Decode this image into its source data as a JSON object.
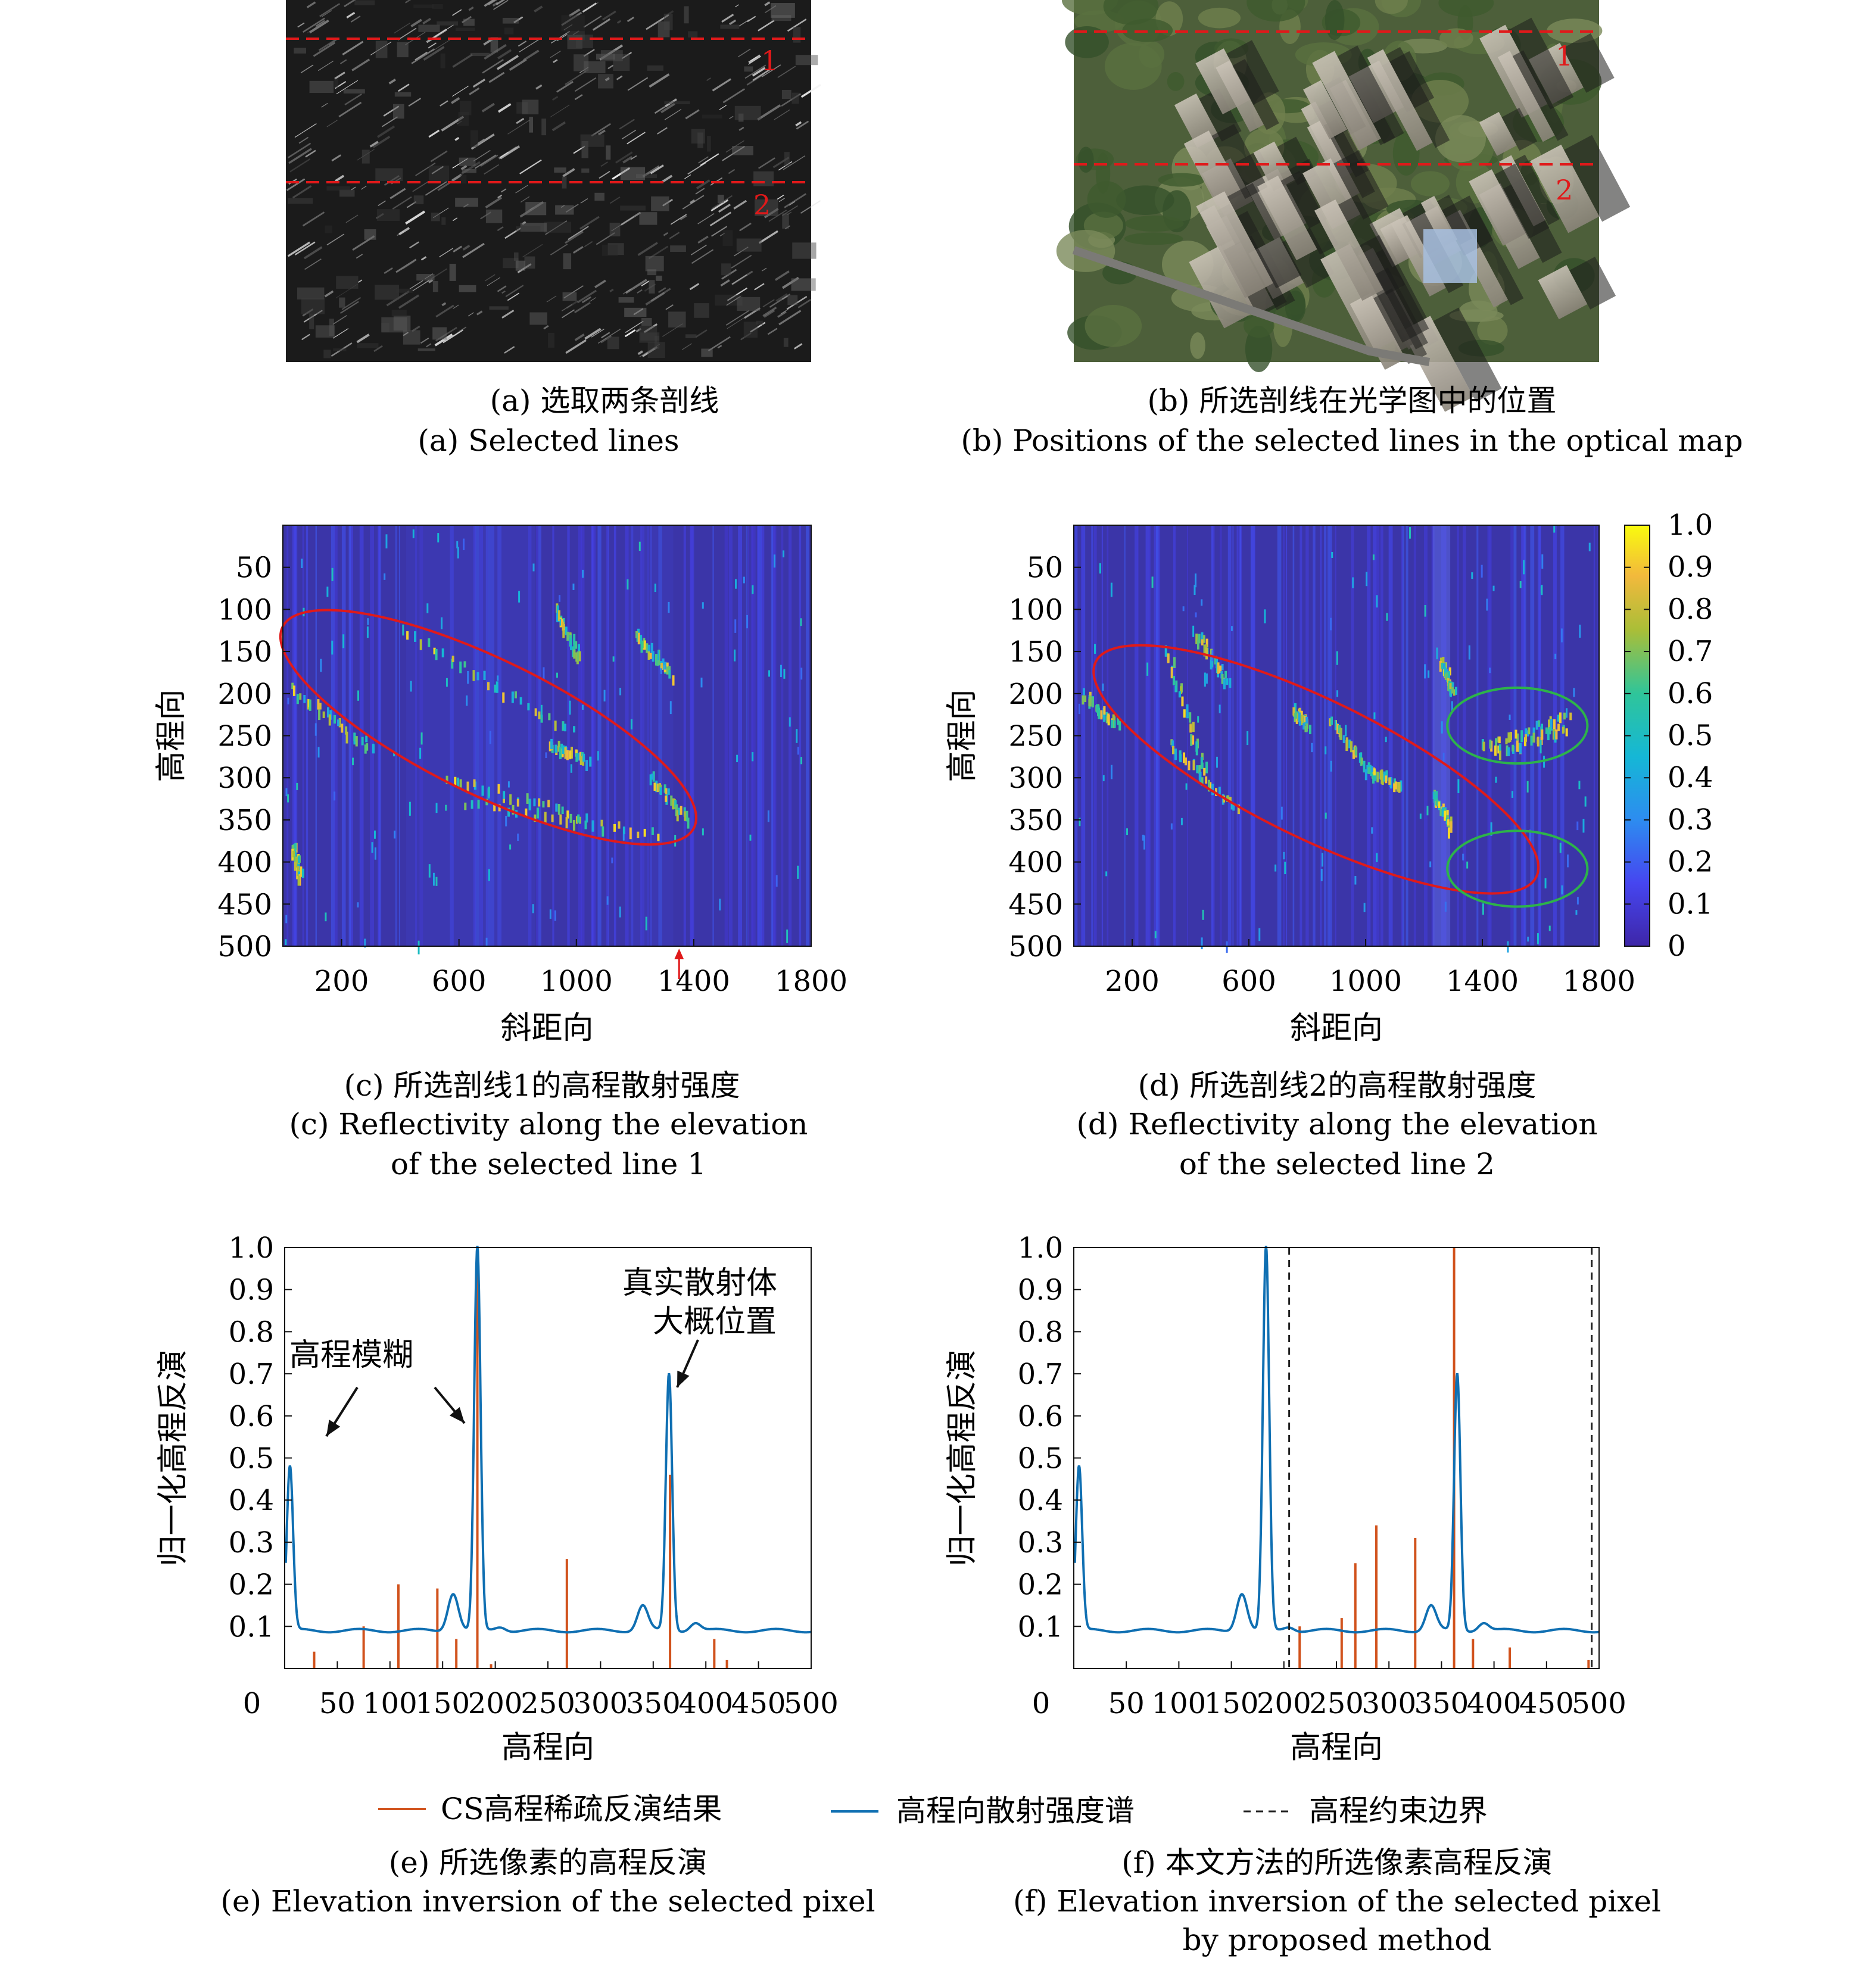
{
  "colors": {
    "axis": "#111111",
    "red_line": "#e0191a",
    "ellipse_red": "#e01a1a",
    "ellipse_green": "#2db34a",
    "spectrum": "#0f6fb2",
    "cs": "#d1521c",
    "heat_bg": "#3b35a8"
  },
  "icons": [
    "arrow-icon",
    "colorbar"
  ],
  "panels": {
    "a": {
      "caption_cn": "(a) 选取两条剖线",
      "caption_en": "(a) Selected lines",
      "line_labels": [
        "1",
        "2"
      ]
    },
    "b": {
      "caption_cn": "(b) 所选剖线在光学图中的位置",
      "caption_en": "(b) Positions of the selected lines in the optical map",
      "line_labels": [
        "1",
        "2"
      ]
    },
    "c": {
      "caption_cn": "(c) 所选剖线1的高程散射强度",
      "caption_en_1": "(c) Reflectivity along the elevation",
      "caption_en_2": "of the selected line 1"
    },
    "d": {
      "caption_cn": "(d) 所选剖线2的高程散射强度",
      "caption_en_1": "(d) Reflectivity along the elevation",
      "caption_en_2": "of the selected line 2"
    },
    "e": {
      "caption_cn": "(e) 所选像素的高程反演",
      "caption_en": "(e) Elevation inversion of the selected pixel",
      "annotation_1": "高程模糊",
      "annotation_2_line1": "真实散射体",
      "annotation_2_line2": "大概位置"
    },
    "f": {
      "caption_cn": "(f) 本文方法的所选像素高程反演",
      "caption_en_1": "(f) Elevation inversion of the selected pixel",
      "caption_en_2": "by proposed method"
    }
  },
  "legend": {
    "cs": "CS高程稀疏反演结果",
    "spectrum": "高程向散射强度谱",
    "boundary": "高程约束边界"
  },
  "chart_data": [
    {
      "type": "heatmap",
      "panel": "c",
      "xlabel": "斜距向",
      "ylabel": "高程向",
      "xticks": [
        200,
        600,
        1000,
        1400,
        1800
      ],
      "yticks": [
        50,
        100,
        150,
        200,
        250,
        300,
        350,
        400,
        450,
        500
      ],
      "xlim": [
        0,
        1800
      ],
      "ylim": [
        0,
        500
      ],
      "marked_range_bin": 1350,
      "ellipses": [
        {
          "color": "red",
          "center": [
            700,
            240
          ],
          "semi_axes": [
            780,
            80
          ],
          "angle_deg": 26
        }
      ]
    },
    {
      "type": "heatmap",
      "panel": "d",
      "xlabel": "斜距向",
      "ylabel": "高程向",
      "xticks": [
        200,
        600,
        1000,
        1400,
        1800
      ],
      "yticks": [
        50,
        100,
        150,
        200,
        250,
        300,
        350,
        400,
        450,
        500
      ],
      "xlim": [
        0,
        1800
      ],
      "ylim": [
        0,
        500
      ],
      "colorbar": {
        "range": [
          0,
          1
        ],
        "ticks": [
          "1.0",
          "0.9",
          "0.8",
          "0.7",
          "0.6",
          "0.5",
          "0.4",
          "0.3",
          "0.2",
          "0.1",
          "0"
        ]
      },
      "ellipses": [
        {
          "color": "red",
          "center": [
            830,
            290
          ],
          "semi_axes": [
            840,
            82
          ],
          "angle_deg": 26
        },
        {
          "color": "green",
          "center": [
            1520,
            238
          ],
          "semi_axes": [
            240,
            45
          ],
          "angle_deg": 0
        },
        {
          "color": "green",
          "center": [
            1520,
            408
          ],
          "semi_axes": [
            240,
            45
          ],
          "angle_deg": 0
        }
      ]
    },
    {
      "type": "line",
      "panel": "e",
      "xlabel": "高程向",
      "ylabel": "归一化高程反演",
      "xlim": [
        0,
        500
      ],
      "ylim": [
        0,
        1
      ],
      "xticks": [
        "0",
        "50",
        "100",
        "150",
        "200",
        "250",
        "300",
        "350",
        "400",
        "450",
        "500"
      ],
      "yticks": [
        "0.1",
        "0.2",
        "0.3",
        "0.4",
        "0.5",
        "0.6",
        "0.7",
        "0.8",
        "0.9",
        "1.0"
      ],
      "spectrum": {
        "baseline": 0.09,
        "peaks": [
          {
            "x": 5,
            "h": 0.48,
            "w": 3
          },
          {
            "x": 160,
            "h": 0.18,
            "w": 5
          },
          {
            "x": 183,
            "h": 1.0,
            "w": 3
          },
          {
            "x": 205,
            "h": 0.1,
            "w": 5
          },
          {
            "x": 340,
            "h": 0.15,
            "w": 5
          },
          {
            "x": 365,
            "h": 0.7,
            "w": 3
          },
          {
            "x": 390,
            "h": 0.11,
            "w": 5
          }
        ]
      },
      "cs_stems": [
        {
          "x": 28,
          "y": 0.04
        },
        {
          "x": 75,
          "y": 0.1
        },
        {
          "x": 108,
          "y": 0.2
        },
        {
          "x": 145,
          "y": 0.19
        },
        {
          "x": 163,
          "y": 0.07
        },
        {
          "x": 183,
          "y": 1.0
        },
        {
          "x": 196,
          "y": 0.01
        },
        {
          "x": 268,
          "y": 0.26
        },
        {
          "x": 366,
          "y": 0.46
        },
        {
          "x": 408,
          "y": 0.07
        },
        {
          "x": 420,
          "y": 0.02
        }
      ]
    },
    {
      "type": "line",
      "panel": "f",
      "xlabel": "高程向",
      "ylabel": "归一化高程反演",
      "xlim": [
        0,
        500
      ],
      "ylim": [
        0,
        1
      ],
      "xticks": [
        "0",
        "50",
        "100",
        "150",
        "200",
        "250",
        "300",
        "350",
        "400",
        "450",
        "500"
      ],
      "yticks": [
        "0.1",
        "0.2",
        "0.3",
        "0.4",
        "0.5",
        "0.6",
        "0.7",
        "0.8",
        "0.9",
        "1.0"
      ],
      "spectrum": {
        "baseline": 0.09,
        "peaks": [
          {
            "x": 5,
            "h": 0.48,
            "w": 3
          },
          {
            "x": 160,
            "h": 0.18,
            "w": 5
          },
          {
            "x": 183,
            "h": 1.0,
            "w": 3
          },
          {
            "x": 205,
            "h": 0.1,
            "w": 5
          },
          {
            "x": 340,
            "h": 0.15,
            "w": 5
          },
          {
            "x": 365,
            "h": 0.7,
            "w": 3
          },
          {
            "x": 390,
            "h": 0.11,
            "w": 5
          }
        ]
      },
      "cs_stems": [
        {
          "x": 215,
          "y": 0.1
        },
        {
          "x": 255,
          "y": 0.12
        },
        {
          "x": 268,
          "y": 0.25
        },
        {
          "x": 288,
          "y": 0.34
        },
        {
          "x": 325,
          "y": 0.31
        },
        {
          "x": 362,
          "y": 1.0
        },
        {
          "x": 380,
          "y": 0.07
        },
        {
          "x": 415,
          "y": 0.05
        },
        {
          "x": 490,
          "y": 0.02
        }
      ],
      "boundaries": [
        205,
        493
      ]
    }
  ]
}
